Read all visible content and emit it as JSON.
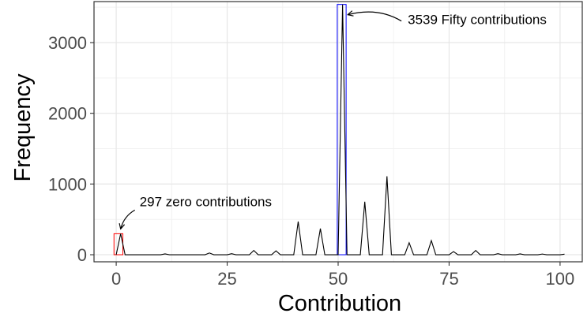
{
  "chart_data": {
    "type": "line",
    "xlabel": "Contribution",
    "ylabel": "Frequency",
    "xlim": [
      -5,
      105
    ],
    "ylim": [
      -100,
      3580
    ],
    "x_ticks": [
      0,
      25,
      50,
      75,
      100
    ],
    "y_ticks": [
      0,
      1000,
      2000,
      3000
    ],
    "x_tick_labels": [
      "0",
      "25",
      "50",
      "75",
      "100"
    ],
    "y_tick_labels": [
      "0",
      "1000",
      "2000",
      "3000"
    ],
    "grid": true,
    "legend": "none",
    "series": [
      {
        "color": "#000000",
        "points": [
          [
            0,
            0
          ],
          [
            1,
            297
          ],
          [
            2,
            0
          ],
          [
            10,
            0
          ],
          [
            11,
            12
          ],
          [
            12,
            0
          ],
          [
            20,
            0
          ],
          [
            21,
            25
          ],
          [
            22,
            0
          ],
          [
            25,
            0
          ],
          [
            26,
            15
          ],
          [
            27,
            0
          ],
          [
            30,
            0
          ],
          [
            31,
            60
          ],
          [
            32,
            0
          ],
          [
            35,
            0
          ],
          [
            36,
            55
          ],
          [
            37,
            0
          ],
          [
            40,
            0
          ],
          [
            41,
            470
          ],
          [
            42,
            0
          ],
          [
            45,
            0
          ],
          [
            46,
            370
          ],
          [
            47,
            0
          ],
          [
            50,
            0
          ],
          [
            51,
            3539
          ],
          [
            52,
            0
          ],
          [
            55,
            0
          ],
          [
            56,
            750
          ],
          [
            57,
            0
          ],
          [
            60,
            0
          ],
          [
            61,
            1110
          ],
          [
            62,
            0
          ],
          [
            65,
            0
          ],
          [
            66,
            170
          ],
          [
            67,
            0
          ],
          [
            70,
            0
          ],
          [
            71,
            200
          ],
          [
            72,
            0
          ],
          [
            75,
            0
          ],
          [
            76,
            45
          ],
          [
            77,
            0
          ],
          [
            80,
            0
          ],
          [
            81,
            60
          ],
          [
            82,
            0
          ],
          [
            85,
            0
          ],
          [
            86,
            15
          ],
          [
            87,
            0
          ],
          [
            90,
            0
          ],
          [
            91,
            12
          ],
          [
            92,
            0
          ],
          [
            95,
            0
          ],
          [
            96,
            10
          ],
          [
            97,
            0
          ],
          [
            100,
            0
          ],
          [
            101,
            8
          ]
        ]
      }
    ],
    "highlights": [
      {
        "x_range": [
          -0.5,
          1.5
        ],
        "y_range": [
          0,
          297
        ],
        "color": "#ff0000"
      },
      {
        "x_range": [
          49.8,
          51.8
        ],
        "y_range": [
          0,
          3539
        ],
        "color": "#0000ff"
      }
    ],
    "annotations": [
      {
        "text": "297 zero contributions",
        "x": 1,
        "y": 297
      },
      {
        "text": "3539 Fifty contributions",
        "x": 51,
        "y": 3539
      }
    ]
  }
}
